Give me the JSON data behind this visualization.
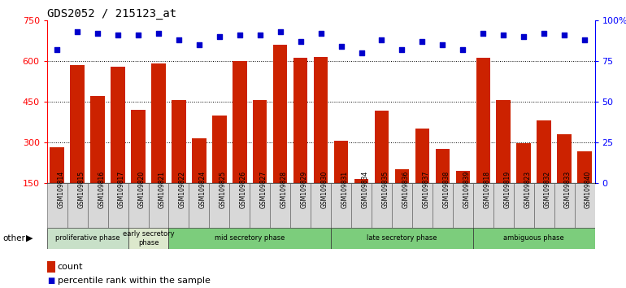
{
  "title": "GDS2052 / 215123_at",
  "samples": [
    "GSM109814",
    "GSM109815",
    "GSM109816",
    "GSM109817",
    "GSM109820",
    "GSM109821",
    "GSM109822",
    "GSM109824",
    "GSM109825",
    "GSM109826",
    "GSM109827",
    "GSM109828",
    "GSM109829",
    "GSM109830",
    "GSM109831",
    "GSM109834",
    "GSM109835",
    "GSM109836",
    "GSM109837",
    "GSM109838",
    "GSM109839",
    "GSM109818",
    "GSM109819",
    "GSM109823",
    "GSM109832",
    "GSM109833",
    "GSM109840"
  ],
  "counts": [
    280,
    585,
    470,
    578,
    420,
    590,
    455,
    315,
    398,
    600,
    455,
    660,
    610,
    615,
    305,
    165,
    415,
    200,
    350,
    275,
    195,
    610,
    455,
    295,
    380,
    330,
    265
  ],
  "percentiles": [
    82,
    93,
    92,
    91,
    91,
    92,
    88,
    85,
    90,
    91,
    91,
    93,
    87,
    92,
    84,
    80,
    88,
    82,
    87,
    85,
    82,
    92,
    91,
    90,
    92,
    91,
    88
  ],
  "phases": [
    {
      "label": "proliferative phase",
      "start": 0,
      "end": 4,
      "color": "#c8e0c8"
    },
    {
      "label": "early secretory\nphase",
      "start": 4,
      "end": 6,
      "color": "#dce8cc"
    },
    {
      "label": "mid secretory phase",
      "start": 6,
      "end": 14,
      "color": "#7ccd7c"
    },
    {
      "label": "late secretory phase",
      "start": 14,
      "end": 21,
      "color": "#7ccd7c"
    },
    {
      "label": "ambiguous phase",
      "start": 21,
      "end": 27,
      "color": "#7ccd7c"
    }
  ],
  "ylim_left": [
    150,
    750
  ],
  "ylim_right": [
    0,
    100
  ],
  "yticks_left": [
    150,
    300,
    450,
    600,
    750
  ],
  "yticks_right": [
    0,
    25,
    50,
    75,
    100
  ],
  "ytick_right_labels": [
    "0",
    "25",
    "50",
    "75",
    "100%"
  ],
  "bar_color": "#cc2200",
  "dot_color": "#0000cc",
  "bar_width": 0.7,
  "gridline_values": [
    300,
    450,
    600
  ],
  "bg_color": "#f0f0f0"
}
